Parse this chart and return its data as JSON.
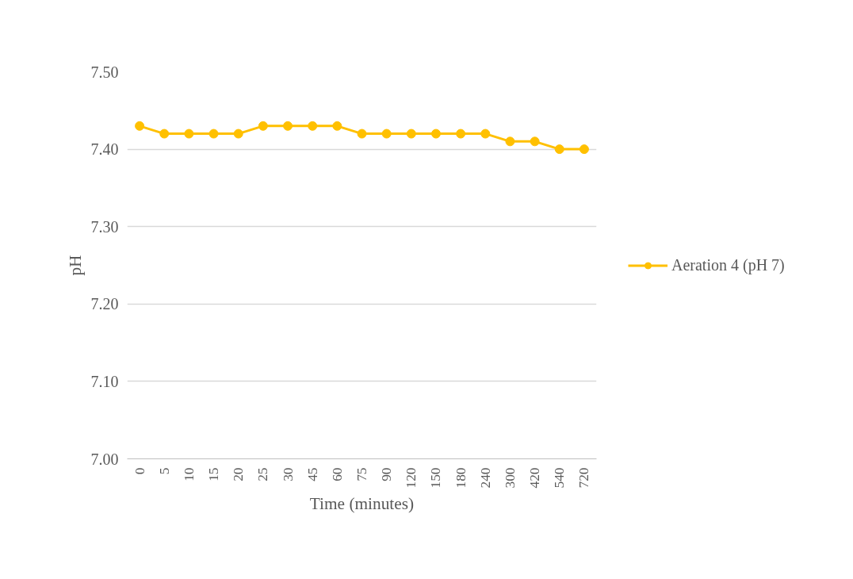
{
  "chart_data": {
    "type": "line",
    "xlabel": "Time (minutes)",
    "ylabel": "pH",
    "categories": [
      "0",
      "5",
      "10",
      "15",
      "20",
      "25",
      "30",
      "45",
      "60",
      "75",
      "90",
      "120",
      "150",
      "180",
      "240",
      "300",
      "420",
      "540",
      "720"
    ],
    "series": [
      {
        "name": "Aeration 4 (pH 7)",
        "color": "#ffc000",
        "values": [
          7.43,
          7.42,
          7.42,
          7.42,
          7.42,
          7.43,
          7.43,
          7.43,
          7.43,
          7.42,
          7.42,
          7.42,
          7.42,
          7.42,
          7.42,
          7.41,
          7.41,
          7.4,
          7.4
        ]
      }
    ],
    "ylim": [
      7.0,
      7.5
    ],
    "yticks": [
      {
        "value": 7.0,
        "label": "7.00"
      },
      {
        "value": 7.1,
        "label": "7.10"
      },
      {
        "value": 7.2,
        "label": "7.20"
      },
      {
        "value": 7.3,
        "label": "7.30"
      },
      {
        "value": 7.4,
        "label": "7.40"
      },
      {
        "value": 7.5,
        "label": "7.50"
      }
    ],
    "grid": "y",
    "legend": "right",
    "marker": "circle",
    "line_style": "solid"
  }
}
